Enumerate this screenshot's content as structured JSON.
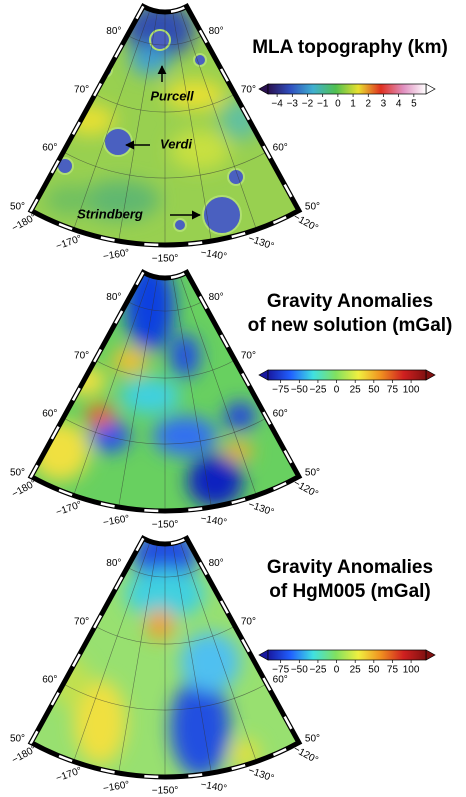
{
  "panels": [
    {
      "title_lines": [
        "MLA topography (km)"
      ],
      "colorbar": {
        "lim": [
          -4.6,
          5.8
        ],
        "ticks": [
          {
            "value": -4,
            "label": "−4"
          },
          {
            "value": -3,
            "label": "−3"
          },
          {
            "value": -2,
            "label": "−2"
          },
          {
            "value": -1,
            "label": "−1"
          },
          0,
          1,
          2,
          3,
          4,
          5
        ],
        "colors": [
          "#2a1050",
          "#3050c0",
          "#40b0d0",
          "#50c050",
          "#e8e030",
          "#e03020",
          "#e090c0",
          "#ffffff"
        ]
      },
      "latitude_labels": [
        "80°",
        "70°",
        "60°",
        "50°"
      ],
      "longitude_labels": [
        "−180°",
        "−170°",
        "−160°",
        "−150°",
        "−140°",
        "−130°",
        "−120°"
      ],
      "annotations": [
        "Purcell",
        "Verdi",
        "Strindberg"
      ]
    },
    {
      "title_lines": [
        "Gravity Anomalies",
        "of new solution (mGal)"
      ],
      "colorbar": {
        "lim": [
          -92,
          120
        ],
        "ticks": [
          {
            "value": -75,
            "label": "−75"
          },
          {
            "value": -50,
            "label": "−50"
          },
          {
            "value": -25,
            "label": "−25"
          },
          0,
          25,
          50,
          75,
          100
        ],
        "colors": [
          "#1818a0",
          "#2060ff",
          "#40e0e0",
          "#80e060",
          "#f0f040",
          "#f09020",
          "#d02020",
          "#801010"
        ]
      },
      "latitude_labels": [
        "80°",
        "70°",
        "60°",
        "50°"
      ],
      "longitude_labels": [
        "−180°",
        "−170°",
        "−160°",
        "−150°",
        "−140°",
        "−130°",
        "−120°"
      ]
    },
    {
      "title_lines": [
        "Gravity Anomalies",
        "of HgM005 (mGal)"
      ],
      "colorbar": {
        "lim": [
          -92,
          120
        ],
        "ticks": [
          {
            "value": -75,
            "label": "−75"
          },
          {
            "value": -50,
            "label": "−50"
          },
          {
            "value": -25,
            "label": "−25"
          },
          0,
          25,
          50,
          75,
          100
        ],
        "colors": [
          "#1818a0",
          "#2060ff",
          "#40e0e0",
          "#80e060",
          "#f0f040",
          "#f09020",
          "#d02020",
          "#801010"
        ]
      },
      "latitude_labels": [
        "80°",
        "70°",
        "60°",
        "50°"
      ],
      "longitude_labels": [
        "−180°",
        "−170°",
        "−160°",
        "−150°",
        "−140°",
        "−130°",
        "−120°"
      ]
    }
  ]
}
